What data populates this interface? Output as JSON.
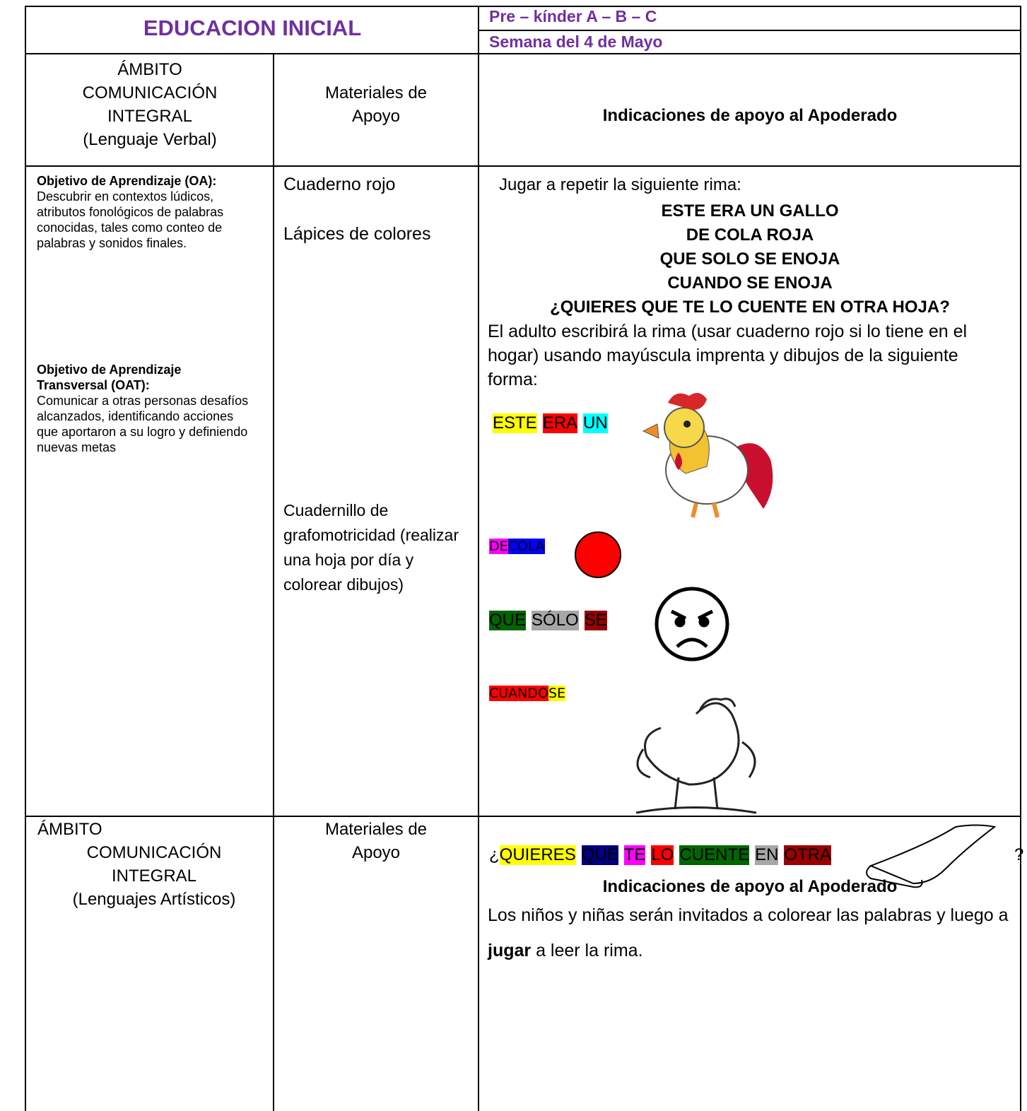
{
  "header": {
    "title": "EDUCACION INICIAL",
    "level": "Pre – kínder A – B – C",
    "week": "Semana del 4 de Mayo"
  },
  "section1": {
    "head": {
      "ambito": [
        "ÁMBITO",
        "COMUNICACIÓN",
        "INTEGRAL",
        "(Lenguaje Verbal)"
      ],
      "materials": [
        "Materiales de",
        "Apoyo"
      ],
      "instructions": "Indicaciones de apoyo al Apoderado"
    },
    "objectives": [
      {
        "title": "Objetivo de Aprendizaje (OA):",
        "text": "Descubrir en contextos lúdicos, atributos fonológicos de palabras conocidas, tales como conteo de palabras y sonidos finales."
      },
      {
        "title": "Objetivo de Aprendizaje Transversal (OAT):",
        "text": "Comunicar a otras personas desafíos alcanzados, identificando acciones que aportaron a su logro y definiendo nuevas metas"
      }
    ],
    "materials": [
      "Cuaderno rojo",
      "Lápices de colores",
      "Cuadernillo de grafomotricidad (realizar una hoja por día y colorear dibujos)"
    ],
    "instructions": {
      "intro": "Jugar a repetir la siguiente rima:",
      "rhyme": [
        "ESTE ERA UN GALLO",
        "DE COLA ROJA",
        "QUE SOLO SE ENOJA",
        "CUANDO SE ENOJA",
        "¿QUIERES QUE TE LO CUENTE EN OTRA HOJA?"
      ],
      "explanation": "El adulto escribirá la rima (usar cuaderno rojo si lo tiene en el hogar) usando mayúscula imprenta y dibujos de la siguiente forma:",
      "word_rows": [
        {
          "words": [
            {
              "text": "ESTE",
              "color": "#ffff00"
            },
            {
              "text": "ERA",
              "color": "#ff0000"
            },
            {
              "text": "UN",
              "color": "#00ffff"
            }
          ]
        },
        {
          "words": [
            {
              "text": "DE",
              "color": "#ff00ff"
            },
            {
              "text": "COLA",
              "color": "#0000ff"
            }
          ]
        },
        {
          "words": [
            {
              "text": "QUE",
              "color": "#006600"
            },
            {
              "text": "SÓLO",
              "color": "#a6a6a6"
            },
            {
              "text": "SE",
              "color": "#990000"
            }
          ]
        },
        {
          "words": [
            {
              "text": "CUANDO",
              "color": "#ff0000"
            },
            {
              "text": "SE",
              "color": "#ffff00"
            }
          ]
        },
        {
          "prefix": "¿",
          "words": [
            {
              "text": "QUIERES",
              "color": "#ffff00"
            },
            {
              "text": "QUE",
              "color": "#000080"
            },
            {
              "text": "TE",
              "color": "#ff00ff"
            },
            {
              "text": "LO",
              "color": "#ff0000"
            },
            {
              "text": "CUENTE",
              "color": "#006600"
            },
            {
              "text": "EN",
              "color": "#a6a6a6"
            },
            {
              "text": "OTRA",
              "color": "#990000"
            }
          ],
          "suffix": "?"
        }
      ],
      "closing": [
        "Los niños y niñas serán invitados a colorear las palabras y luego a ",
        "jugar",
        " a leer la rima."
      ]
    }
  },
  "section2": {
    "head": {
      "ambito": [
        "ÁMBITO",
        "COMUNICACIÓN",
        "INTEGRAL",
        "(Lenguajes Artísticos)"
      ],
      "materials": [
        "Materiales de",
        "Apoyo"
      ],
      "instructions": "Indicaciones de apoyo al Apoderado"
    }
  }
}
